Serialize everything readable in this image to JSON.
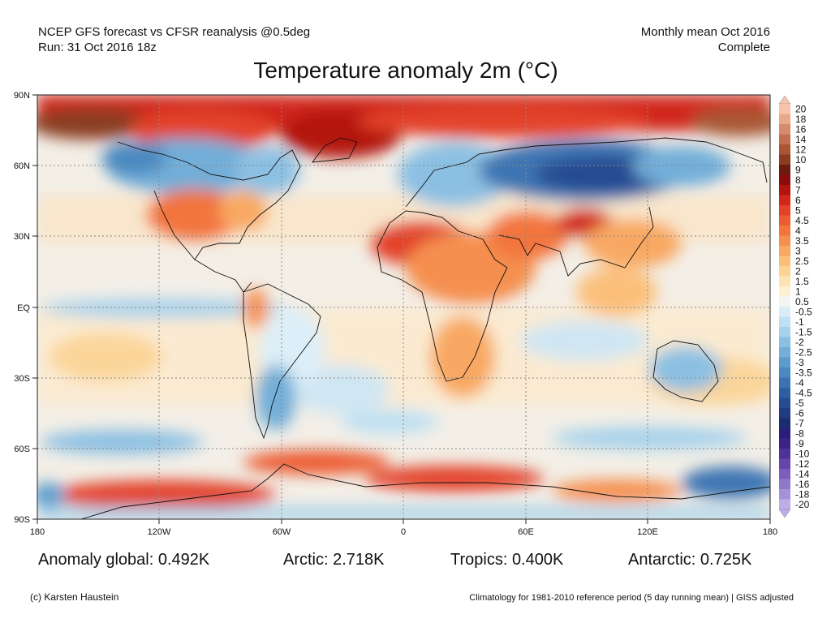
{
  "header": {
    "source": "NCEP GFS forecast vs CFSR reanalysis @0.5deg",
    "run": "Run: 31 Oct 2016 18z",
    "period": "Monthly mean Oct 2016",
    "status": "Complete"
  },
  "title": "Temperature anomaly 2m (°C)",
  "map": {
    "lat_labels": [
      "90N",
      "60N",
      "30N",
      "EQ",
      "30S",
      "60S",
      "90S"
    ],
    "lon_labels": [
      "180",
      "120W",
      "60W",
      "0",
      "60E",
      "120E",
      "180"
    ],
    "projection": "equirectangular",
    "anomaly_regions": [
      {
        "name": "Arctic",
        "sign": "warm"
      },
      {
        "name": "Siberia",
        "sign": "cold"
      },
      {
        "name": "Western Canada",
        "sign": "cold"
      },
      {
        "name": "Central United States",
        "sign": "warm"
      },
      {
        "name": "Sahara",
        "sign": "warm"
      },
      {
        "name": "Tibet",
        "sign": "warm"
      },
      {
        "name": "Southern South America",
        "sign": "cold"
      },
      {
        "name": "Australia",
        "sign": "cold"
      },
      {
        "name": "Antarctica",
        "sign": "warm"
      }
    ]
  },
  "colorbar": {
    "unit": "°C",
    "labels": [
      "20",
      "18",
      "16",
      "14",
      "12",
      "10",
      "9",
      "8",
      "7",
      "6",
      "5",
      "4.5",
      "4",
      "3.5",
      "3",
      "2.5",
      "2",
      "1.5",
      "1",
      "0.5",
      "-0.5",
      "-1",
      "-1.5",
      "-2",
      "-2.5",
      "-3",
      "-3.5",
      "-4",
      "-4.5",
      "-5",
      "-6",
      "-7",
      "-8",
      "-9",
      "-10",
      "-12",
      "-14",
      "-16",
      "-18",
      "-20"
    ],
    "colors": [
      "#f5c4aa",
      "#e8a98a",
      "#d58c6c",
      "#c1704f",
      "#a85634",
      "#8b3c22",
      "#6e1a10",
      "#8c0b0b",
      "#b3140e",
      "#d1271a",
      "#e3422a",
      "#ec5c33",
      "#f2753e",
      "#f58f4f",
      "#f8a862",
      "#fbbf7a",
      "#fcd395",
      "#fde3b2",
      "#fdf0d3",
      "#f4f4f4",
      "#d9ecf7",
      "#bfe0f2",
      "#a6d1eb",
      "#8cc0e2",
      "#72aed8",
      "#5a9ccd",
      "#4a88c0",
      "#3c74b2",
      "#2f5fa3",
      "#274c92",
      "#213b81",
      "#1d2b70",
      "#2a1f78",
      "#3d2387",
      "#4f3299",
      "#6547aa",
      "#7b5ebc",
      "#9077cc",
      "#a692da",
      "#bcaee6"
    ]
  },
  "stats": {
    "global": "Anomaly global: 0.492K",
    "arctic": "Arctic: 2.718K",
    "tropics": "Tropics: 0.400K",
    "antarctic": "Antarctic: 0.725K"
  },
  "footer": {
    "credit": "(c) Karsten Haustein",
    "climatology": "Climatology for 1981-2010 reference period (5 day running mean) | GISS adjusted"
  }
}
